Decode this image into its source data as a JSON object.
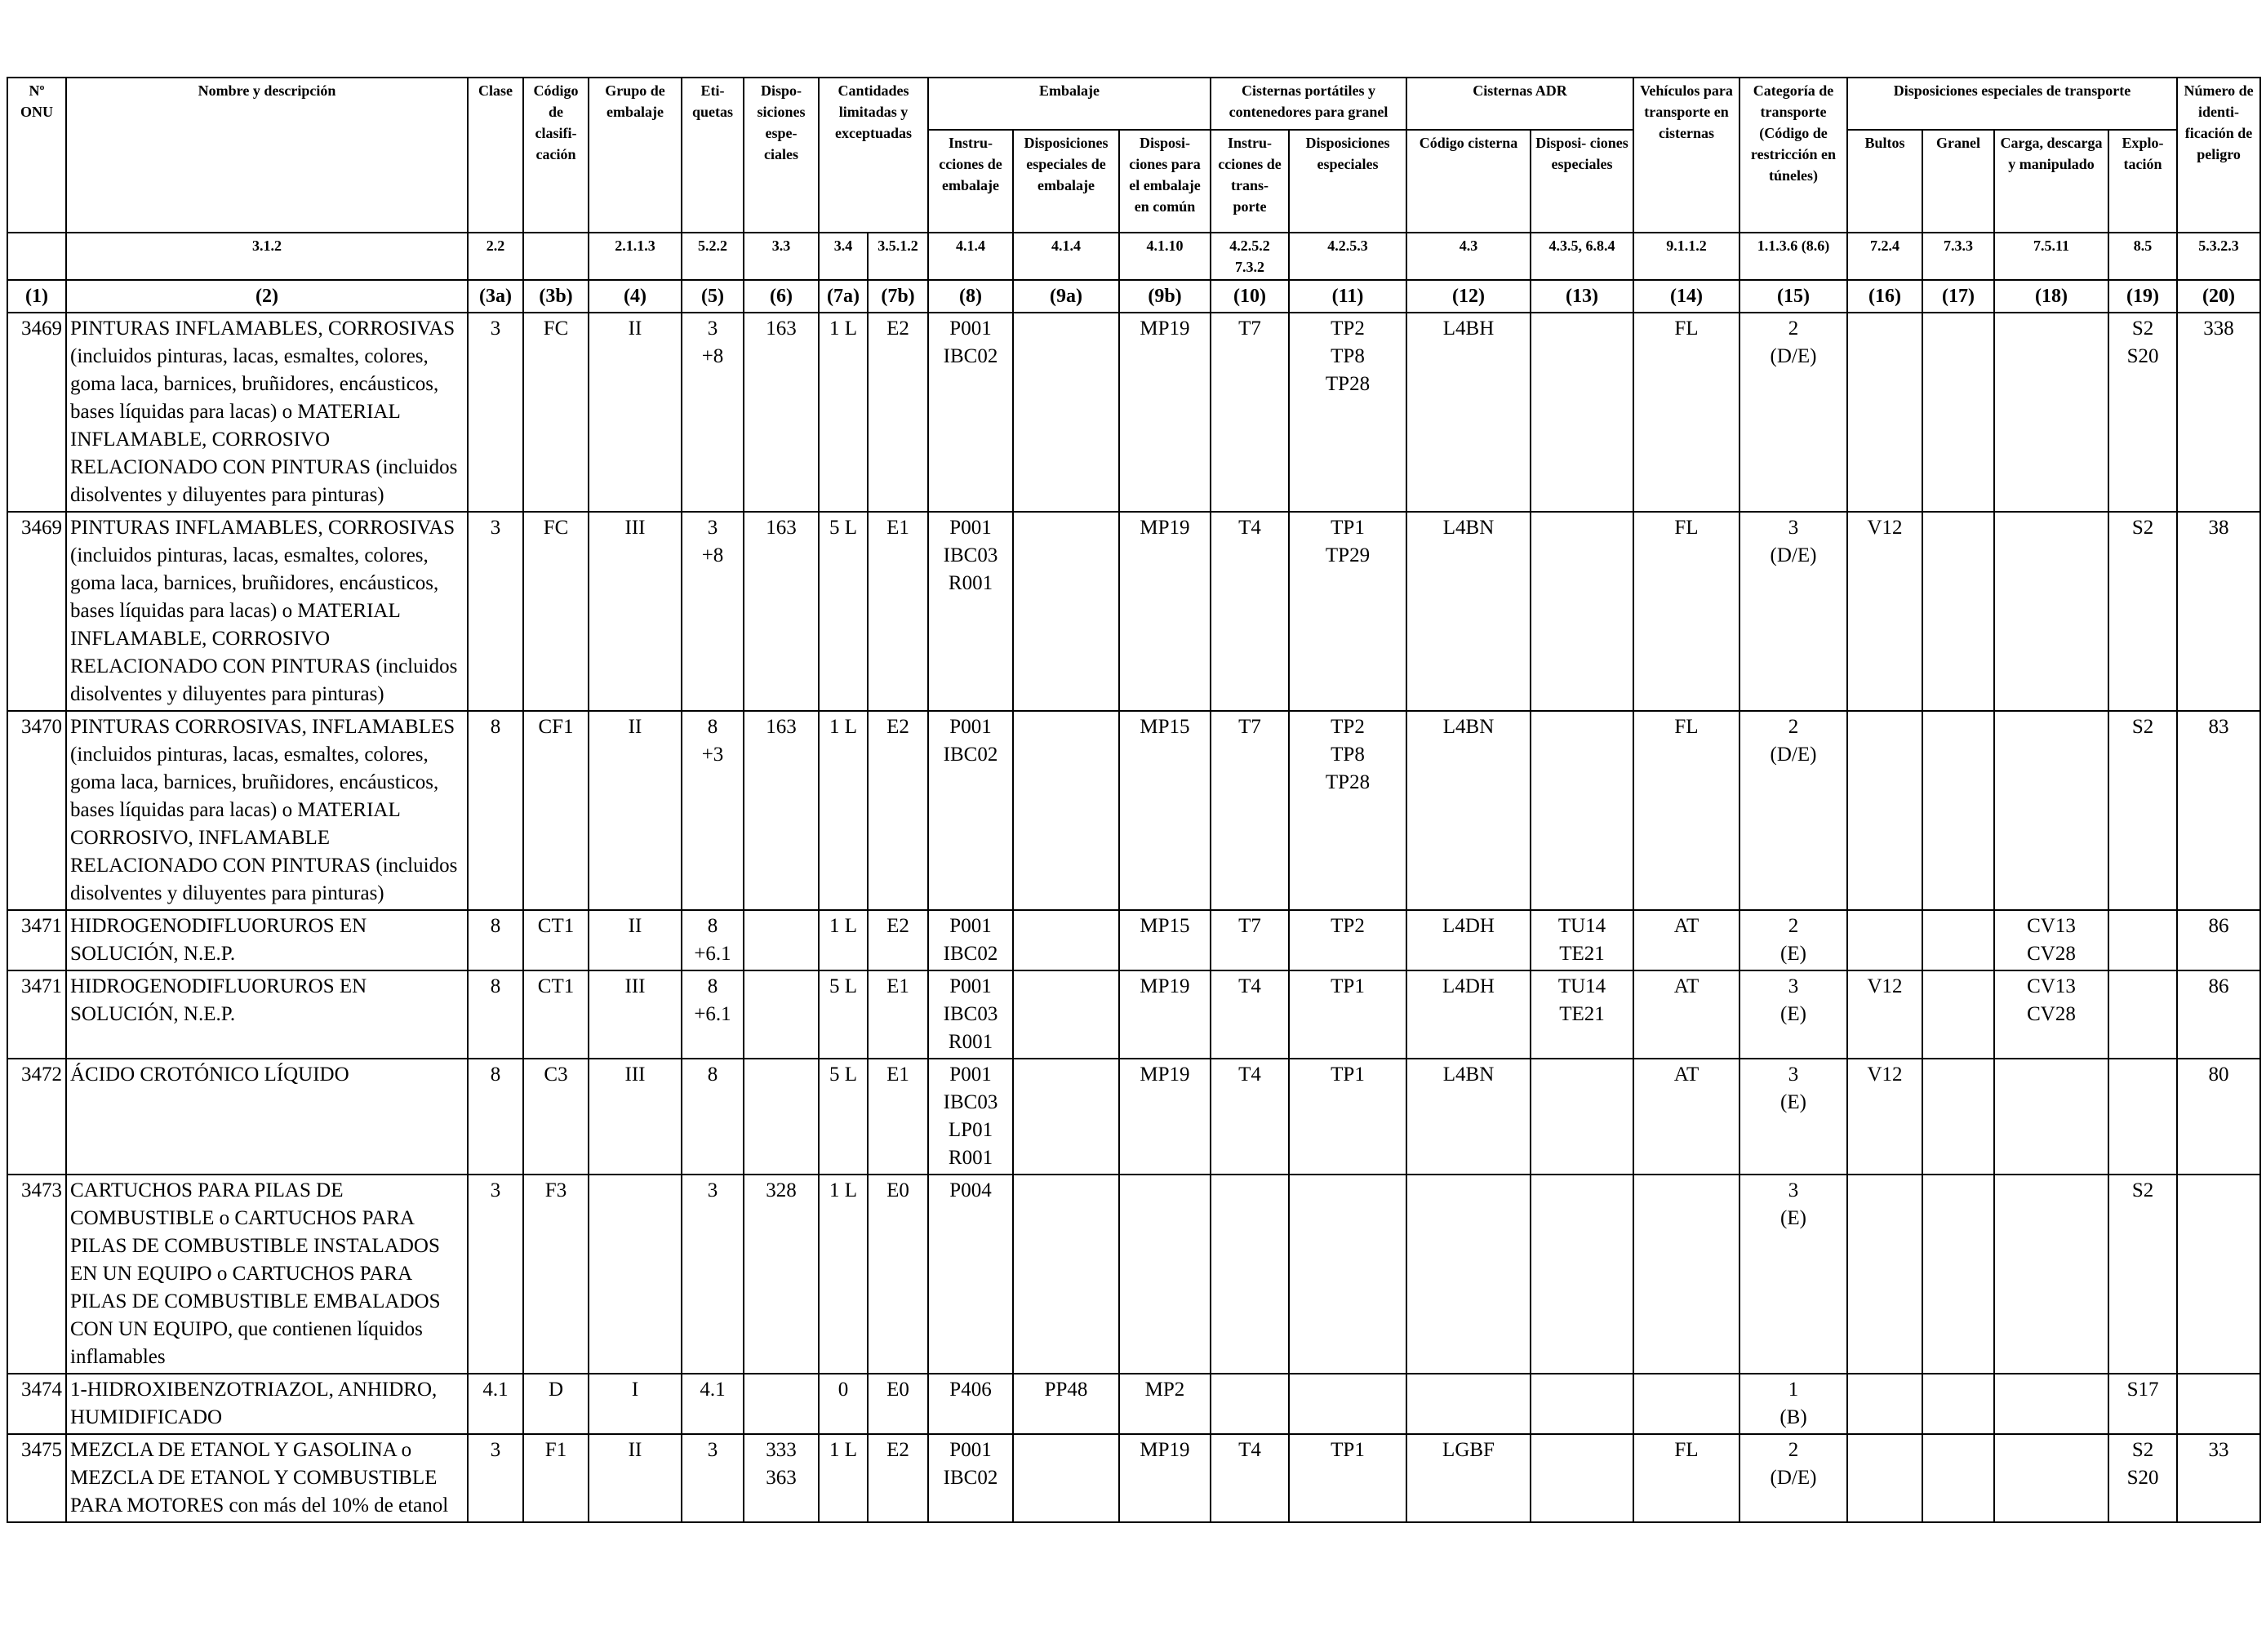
{
  "header": {
    "un_no": "Nº ONU",
    "name": "Nombre y descripción",
    "name_ref": "3.1.2",
    "clase": "Clase",
    "clase_ref": "2.2",
    "codigo": "Código de clasifi- cación",
    "codigo_ref": "",
    "grupo": "Grupo de embalaje",
    "grupo_ref": "2.1.1.3",
    "etiquetas": "Eti- quetas",
    "etiquetas_ref": "5.2.2",
    "disposiciones": "Dispo- siciones espe- ciales",
    "disposiciones_ref": "3.3",
    "cantidades": "Cantidades limitadas y exceptuadas",
    "cant_7a_ref": "3.4",
    "cant_7b_ref": "3.5.1.2",
    "embalaje": "Embalaje",
    "emb_8": "Instru- cciones de embalaje",
    "emb_8_ref": "4.1.4",
    "emb_9a": "Disposiciones especiales de embalaje",
    "emb_9a_ref": "4.1.4",
    "emb_9b": "Disposi- ciones para el embalaje en común",
    "emb_9b_ref": "4.1.10",
    "cisternas_port": "Cisternas portátiles y contenedores para granel",
    "cp_10": "Instru- cciones de trans- porte",
    "cp_10_ref": "4.2.5.2 7.3.2",
    "cp_11": "Disposiciones especiales",
    "cp_11_ref": "4.2.5.3",
    "cisternas_adr": "Cisternas ADR",
    "adr_12": "Código cisterna",
    "adr_12_ref": "4.3",
    "adr_13": "Disposi- ciones especiales",
    "adr_13_ref": "4.3.5, 6.8.4",
    "vehiculos": "Vehículos para transporte en cisternas",
    "vehiculos_ref": "9.1.1.2",
    "categoria": "Categoría de transporte (Código de restricción en túneles)",
    "categoria_ref": "1.1.3.6 (8.6)",
    "disp_transporte": "Disposiciones especiales de transporte",
    "dt_16": "Bultos",
    "dt_16_ref": "7.2.4",
    "dt_17": "Granel",
    "dt_17_ref": "7.3.3",
    "dt_18": "Carga, descarga y manipulado",
    "dt_18_ref": "7.5.11",
    "dt_19": "Explo- tación",
    "dt_19_ref": "8.5",
    "numero": "Número de identi- ficación de peligro",
    "numero_ref": "5.3.2.3"
  },
  "col_numbers": [
    "(1)",
    "(2)",
    "(3a)",
    "(3b)",
    "(4)",
    "(5)",
    "(6)",
    "(7a)",
    "(7b)",
    "(8)",
    "(9a)",
    "(9b)",
    "(10)",
    "(11)",
    "(12)",
    "(13)",
    "(14)",
    "(15)",
    "(16)",
    "(17)",
    "(18)",
    "(19)",
    "(20)"
  ],
  "rows": [
    {
      "un": "3469",
      "name": "PINTURAS INFLAMABLES, CORROSIVAS (incluidos pinturas, lacas, esmaltes, colores, goma laca, barnices, bruñidores, encáusticos, bases líquidas para lacas) o MATERIAL INFLAMABLE, CORROSIVO RELACIONADO CON PINTURAS (incluidos disolventes y diluyentes para pinturas)",
      "clase": "3",
      "codigo": "FC",
      "grupo": "II",
      "etiquetas": "3\n+8",
      "disp": "163",
      "c7a": "1 L",
      "c7b": "E2",
      "c8": "P001\nIBC02",
      "c9a": "",
      "c9b": "MP19",
      "c10": "T7",
      "c11": "TP2\nTP8\nTP28",
      "c12": "L4BH",
      "c13": "",
      "c14": "FL",
      "c15": "2\n(D/E)",
      "c16": "",
      "c17": "",
      "c18": "",
      "c19": "S2\nS20",
      "c20": "338"
    },
    {
      "un": "3469",
      "name": "PINTURAS INFLAMABLES, CORROSIVAS (incluidos pinturas, lacas, esmaltes, colores, goma laca, barnices, bruñidores, encáusticos, bases líquidas para lacas) o MATERIAL INFLAMABLE, CORROSIVO RELACIONADO CON PINTURAS (incluidos disolventes y diluyentes para pinturas)",
      "clase": "3",
      "codigo": "FC",
      "grupo": "III",
      "etiquetas": "3\n+8",
      "disp": "163",
      "c7a": "5 L",
      "c7b": "E1",
      "c8": "P001\nIBC03\nR001",
      "c9a": "",
      "c9b": "MP19",
      "c10": "T4",
      "c11": "TP1\nTP29",
      "c12": "L4BN",
      "c13": "",
      "c14": "FL",
      "c15": "3\n(D/E)",
      "c16": "V12",
      "c17": "",
      "c18": "",
      "c19": "S2",
      "c20": "38"
    },
    {
      "un": "3470",
      "name": "PINTURAS CORROSIVAS, INFLAMABLES (incluidos pinturas, lacas, esmaltes, colores, goma laca, barnices, bruñidores, encáusticos, bases líquidas para lacas) o MATERIAL CORROSIVO, INFLAMABLE RELACIONADO CON PINTURAS (incluidos disolventes y diluyentes para pinturas)",
      "clase": "8",
      "codigo": "CF1",
      "grupo": "II",
      "etiquetas": "8\n+3",
      "disp": "163",
      "c7a": "1 L",
      "c7b": "E2",
      "c8": "P001\nIBC02",
      "c9a": "",
      "c9b": "MP15",
      "c10": "T7",
      "c11": "TP2\nTP8\nTP28",
      "c12": "L4BN",
      "c13": "",
      "c14": "FL",
      "c15": "2\n(D/E)",
      "c16": "",
      "c17": "",
      "c18": "",
      "c19": "S2",
      "c20": "83"
    },
    {
      "un": "3471",
      "name": "HIDROGENODIFLUORUROS EN SOLUCIÓN, N.E.P.",
      "clase": "8",
      "codigo": "CT1",
      "grupo": "II",
      "etiquetas": "8\n+6.1",
      "disp": "",
      "c7a": "1 L",
      "c7b": "E2",
      "c8": "P001\nIBC02",
      "c9a": "",
      "c9b": "MP15",
      "c10": "T7",
      "c11": "TP2",
      "c12": "L4DH",
      "c13": "TU14\nTE21",
      "c14": "AT",
      "c15": "2\n(E)",
      "c16": "",
      "c17": "",
      "c18": "CV13\nCV28",
      "c19": "",
      "c20": "86"
    },
    {
      "un": "3471",
      "name": "HIDROGENODIFLUORUROS EN SOLUCIÓN, N.E.P.",
      "clase": "8",
      "codigo": "CT1",
      "grupo": "III",
      "etiquetas": "8\n+6.1",
      "disp": "",
      "c7a": "5 L",
      "c7b": "E1",
      "c8": "P001\nIBC03\nR001",
      "c9a": "",
      "c9b": "MP19",
      "c10": "T4",
      "c11": "TP1",
      "c12": "L4DH",
      "c13": "TU14\nTE21",
      "c14": "AT",
      "c15": "3\n(E)",
      "c16": "V12",
      "c17": "",
      "c18": "CV13\nCV28",
      "c19": "",
      "c20": "86"
    },
    {
      "un": "3472",
      "name": "ÁCIDO CROTÓNICO LÍQUIDO",
      "clase": "8",
      "codigo": "C3",
      "grupo": "III",
      "etiquetas": "8",
      "disp": "",
      "c7a": "5 L",
      "c7b": "E1",
      "c8": "P001\nIBC03\nLP01\nR001",
      "c9a": "",
      "c9b": "MP19",
      "c10": "T4",
      "c11": "TP1",
      "c12": "L4BN",
      "c13": "",
      "c14": "AT",
      "c15": "3\n(E)",
      "c16": "V12",
      "c17": "",
      "c18": "",
      "c19": "",
      "c20": "80"
    },
    {
      "un": "3473",
      "name": "CARTUCHOS PARA PILAS DE COMBUSTIBLE o CARTUCHOS PARA PILAS DE COMBUSTIBLE INSTALADOS EN UN EQUIPO o CARTUCHOS PARA PILAS DE COMBUSTIBLE EMBALADOS CON UN EQUIPO, que contienen líquidos inflamables",
      "clase": "3",
      "codigo": "F3",
      "grupo": "",
      "etiquetas": "3",
      "disp": "328",
      "c7a": "1 L",
      "c7b": "E0",
      "c8": "P004",
      "c9a": "",
      "c9b": "",
      "c10": "",
      "c11": "",
      "c12": "",
      "c13": "",
      "c14": "",
      "c15": "3\n(E)",
      "c16": "",
      "c17": "",
      "c18": "",
      "c19": "S2",
      "c20": ""
    },
    {
      "un": "3474",
      "name": "1-HIDROXIBENZOTRIAZOL, ANHIDRO, HUMIDIFICADO",
      "clase": "4.1",
      "codigo": "D",
      "grupo": "I",
      "etiquetas": "4.1",
      "disp": "",
      "c7a": "0",
      "c7b": "E0",
      "c8": "P406",
      "c9a": "PP48",
      "c9b": "MP2",
      "c10": "",
      "c11": "",
      "c12": "",
      "c13": "",
      "c14": "",
      "c15": "1\n(B)",
      "c16": "",
      "c17": "",
      "c18": "",
      "c19": "S17",
      "c20": ""
    },
    {
      "un": "3475",
      "name": "MEZCLA DE ETANOL Y GASOLINA o MEZCLA DE ETANOL Y COMBUSTIBLE PARA MOTORES con más del 10% de etanol",
      "clase": "3",
      "codigo": "F1",
      "grupo": "II",
      "etiquetas": "3",
      "disp": "333\n363",
      "c7a": "1 L",
      "c7b": "E2",
      "c8": "P001\nIBC02",
      "c9a": "",
      "c9b": "MP19",
      "c10": "T4",
      "c11": "TP1",
      "c12": "LGBF",
      "c13": "",
      "c14": "FL",
      "c15": "2\n(D/E)",
      "c16": "",
      "c17": "",
      "c18": "",
      "c19": "S2\nS20",
      "c20": "33"
    }
  ]
}
